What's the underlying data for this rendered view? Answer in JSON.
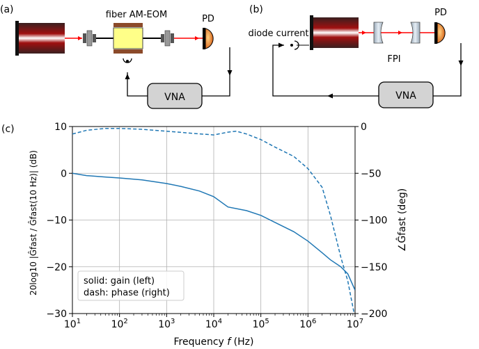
{
  "panel_a": {
    "label": "(a)",
    "eom_label": "fiber AM-EOM",
    "pd_label": "PD",
    "vna_label": "VNA"
  },
  "panel_b": {
    "label": "(b)",
    "pd_label": "PD",
    "diode_label": "diode current",
    "fpi_label": "FPI",
    "vna_label": "VNA"
  },
  "panel_c": {
    "label": "(c)",
    "legend": [
      "solid: gain (left)",
      "dash: phase (right)"
    ]
  },
  "colors": {
    "curve": "#1f77b4",
    "beam": "#ff0000",
    "grid": "#b0b0b0",
    "vna_fill": "#d3d3d3",
    "eom_fill": "#ffff88",
    "eom_plate": "#a0522d",
    "pd_fill": "#e8732a"
  },
  "chart_data": {
    "type": "line",
    "xlabel_main": "Frequency",
    "xlabel_var": "f",
    "xlabel_unit": "(Hz)",
    "x_scale": "log",
    "xlim": [
      10,
      10000000
    ],
    "x_ticks": [
      "10^1",
      "10^2",
      "10^3",
      "10^4",
      "10^5",
      "10^6",
      "10^7"
    ],
    "ylabel_left": "20log10 |Ĝfast / Ĝfast(10 Hz)| (dB)",
    "ylim_left": [
      -30,
      10
    ],
    "yticks_left": [
      -30,
      -20,
      -10,
      0,
      10
    ],
    "ylabel_right": "∠Ĝfast (deg)",
    "ylim_right": [
      -200,
      0
    ],
    "yticks_right": [
      -200,
      -150,
      -100,
      -50,
      0
    ],
    "grid": true,
    "legend_position": "bottom-left",
    "series": [
      {
        "name": "gain",
        "axis": "left",
        "style": "solid",
        "x": [
          10,
          20,
          50,
          100,
          300,
          1000,
          2000,
          5000,
          10000,
          20000,
          50000,
          100000,
          200000,
          500000,
          1000000,
          2000000,
          3000000,
          5000000,
          7000000,
          10000000
        ],
        "y": [
          0,
          -0.5,
          -0.8,
          -1.0,
          -1.4,
          -2.2,
          -2.8,
          -3.8,
          -5.0,
          -7.2,
          -8.0,
          -9.0,
          -10.5,
          -12.5,
          -14.5,
          -17.0,
          -18.5,
          -20.0,
          -21.5,
          -25.0
        ]
      },
      {
        "name": "phase",
        "axis": "right",
        "style": "dashed",
        "x": [
          10,
          20,
          50,
          100,
          300,
          1000,
          3000,
          10000,
          20000,
          30000,
          50000,
          100000,
          200000,
          500000,
          1000000,
          2000000,
          3000000,
          5000000,
          7000000,
          8000000,
          10000000
        ],
        "y": [
          -8,
          -4,
          -2,
          -2,
          -3,
          -5,
          -7,
          -9,
          -6,
          -5,
          -8,
          -14,
          -22,
          -32,
          -45,
          -65,
          -95,
          -140,
          -165,
          -180,
          -205
        ]
      }
    ]
  }
}
